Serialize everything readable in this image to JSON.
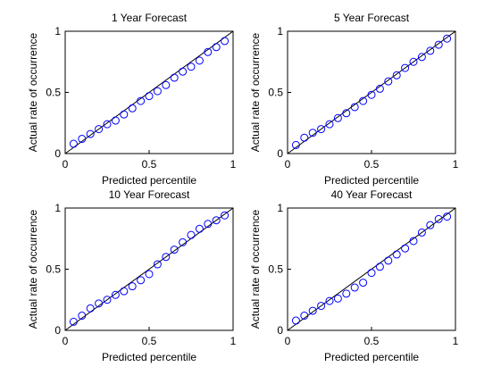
{
  "chart_data": [
    {
      "type": "scatter",
      "title": "1 Year Forecast",
      "xlabel": "Predicted percentile",
      "ylabel": "Actual rate of occurrence",
      "xlim": [
        0,
        1
      ],
      "ylim": [
        0,
        1
      ],
      "xticks": [
        0,
        0.5,
        1
      ],
      "yticks": [
        0,
        0.5,
        1
      ],
      "xtick_labels": [
        "0",
        "0.5",
        "1"
      ],
      "ytick_labels": [
        "0",
        "0.5",
        "1"
      ],
      "reference_line": {
        "x": [
          0,
          1
        ],
        "y": [
          0,
          1
        ]
      },
      "series": [
        {
          "x": [
            0.05,
            0.1,
            0.15,
            0.2,
            0.25,
            0.3,
            0.35,
            0.4,
            0.45,
            0.5,
            0.55,
            0.6,
            0.65,
            0.7,
            0.75,
            0.8,
            0.85,
            0.9,
            0.95
          ],
          "y": [
            0.08,
            0.12,
            0.16,
            0.2,
            0.24,
            0.27,
            0.32,
            0.37,
            0.43,
            0.47,
            0.51,
            0.56,
            0.62,
            0.67,
            0.71,
            0.76,
            0.83,
            0.87,
            0.92
          ]
        }
      ]
    },
    {
      "type": "scatter",
      "title": "5 Year Forecast",
      "xlabel": "Predicted percentile",
      "ylabel": "Actual rate of occurrence",
      "xlim": [
        0,
        1
      ],
      "ylim": [
        0,
        1
      ],
      "xticks": [
        0,
        0.5,
        1
      ],
      "yticks": [
        0,
        0.5,
        1
      ],
      "xtick_labels": [
        "0",
        "0.5",
        "1"
      ],
      "ytick_labels": [
        "0",
        "0.5",
        "1"
      ],
      "reference_line": {
        "x": [
          0,
          1
        ],
        "y": [
          0,
          1
        ]
      },
      "series": [
        {
          "x": [
            0.05,
            0.1,
            0.15,
            0.2,
            0.25,
            0.3,
            0.35,
            0.4,
            0.45,
            0.5,
            0.55,
            0.6,
            0.65,
            0.7,
            0.75,
            0.8,
            0.85,
            0.9,
            0.95
          ],
          "y": [
            0.07,
            0.13,
            0.17,
            0.2,
            0.24,
            0.29,
            0.33,
            0.38,
            0.43,
            0.48,
            0.53,
            0.59,
            0.64,
            0.7,
            0.75,
            0.79,
            0.84,
            0.89,
            0.94
          ]
        }
      ]
    },
    {
      "type": "scatter",
      "title": "10 Year Forecast",
      "xlabel": "Predicted percentile",
      "ylabel": "Actual rate of occurrence",
      "xlim": [
        0,
        1
      ],
      "ylim": [
        0,
        1
      ],
      "xticks": [
        0,
        0.5,
        1
      ],
      "yticks": [
        0,
        0.5,
        1
      ],
      "xtick_labels": [
        "0",
        "0.5",
        "1"
      ],
      "ytick_labels": [
        "0",
        "0.5",
        "1"
      ],
      "reference_line": {
        "x": [
          0,
          1
        ],
        "y": [
          0,
          1
        ]
      },
      "series": [
        {
          "x": [
            0.05,
            0.1,
            0.15,
            0.2,
            0.25,
            0.3,
            0.35,
            0.4,
            0.45,
            0.5,
            0.55,
            0.6,
            0.65,
            0.7,
            0.75,
            0.8,
            0.85,
            0.9,
            0.95
          ],
          "y": [
            0.07,
            0.12,
            0.18,
            0.22,
            0.25,
            0.29,
            0.32,
            0.36,
            0.41,
            0.46,
            0.54,
            0.6,
            0.66,
            0.72,
            0.78,
            0.83,
            0.87,
            0.9,
            0.94
          ]
        }
      ]
    },
    {
      "type": "scatter",
      "title": "40 Year Forecast",
      "xlabel": "Predicted percentile",
      "ylabel": "Actual rate of occurrence",
      "xlim": [
        0,
        1
      ],
      "ylim": [
        0,
        1
      ],
      "xticks": [
        0,
        0.5,
        1
      ],
      "yticks": [
        0,
        0.5,
        1
      ],
      "xtick_labels": [
        "0",
        "0.5",
        "1"
      ],
      "ytick_labels": [
        "0",
        "0.5",
        "1"
      ],
      "reference_line": {
        "x": [
          0,
          1
        ],
        "y": [
          0,
          1
        ]
      },
      "series": [
        {
          "x": [
            0.05,
            0.1,
            0.15,
            0.2,
            0.25,
            0.3,
            0.35,
            0.4,
            0.45,
            0.5,
            0.55,
            0.6,
            0.65,
            0.7,
            0.75,
            0.8,
            0.85,
            0.9,
            0.95
          ],
          "y": [
            0.08,
            0.12,
            0.16,
            0.2,
            0.24,
            0.26,
            0.3,
            0.35,
            0.39,
            0.47,
            0.52,
            0.57,
            0.62,
            0.67,
            0.73,
            0.8,
            0.86,
            0.91,
            0.93
          ]
        }
      ]
    }
  ],
  "colors": {
    "marker": "#0000ff",
    "reference_line": "#000000",
    "axes": "#000000"
  }
}
